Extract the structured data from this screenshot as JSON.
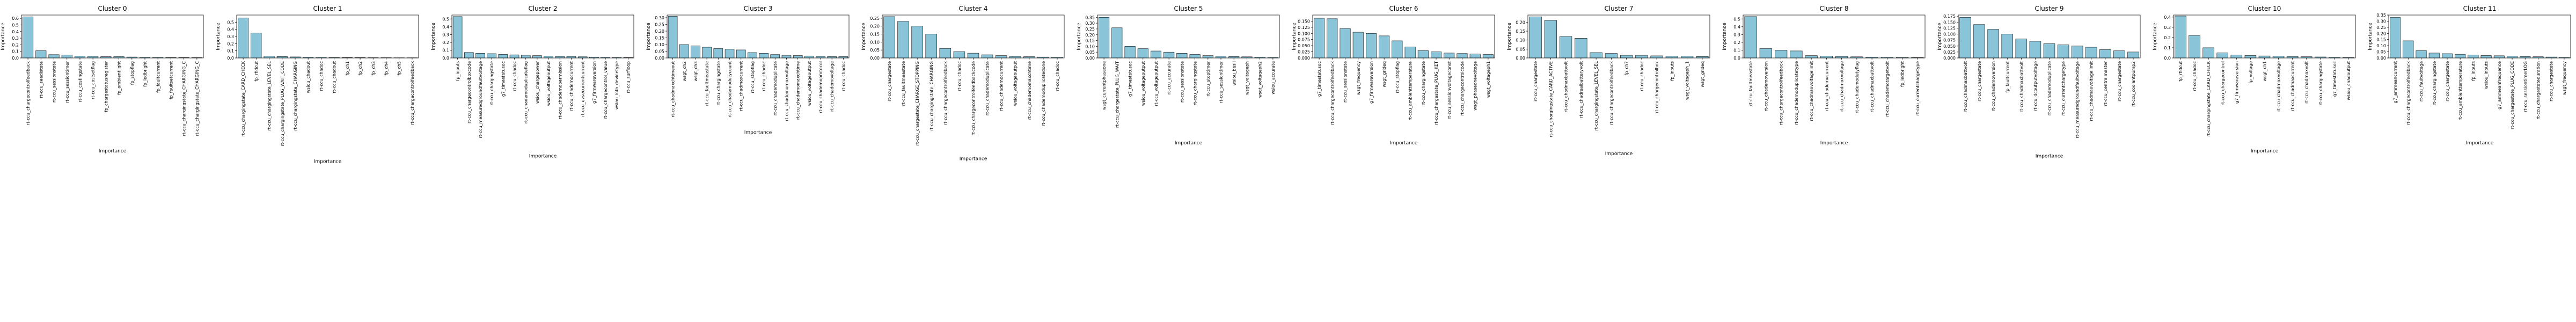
{
  "figure": {
    "bar_color": "#89c4d8",
    "bar_edge_color": "#000000"
  },
  "chart_data": [
    {
      "type": "bar",
      "title": "Cluster 0",
      "xlabel": "Importance",
      "ylabel": "Importance",
      "ylim": [
        0,
        0.65
      ],
      "yticks": [
        0.0,
        0.1,
        0.2,
        0.3,
        0.4,
        0.5,
        0.6
      ],
      "categories": [
        "rt-ccu_chargecontrolfeedback",
        "rt-ccu_seedistate",
        "rt-ccu_sessionstate",
        "rt-ccu_sessiontimer",
        "rt-ccu_costingstate",
        "rt-ccu_costsetflag",
        "fp_chargestatusregister",
        "fp_ambientlight",
        "fp_stopflag",
        "fp_ledbright",
        "fp_faultcurrent",
        "fp_faultsetcurrent",
        "rt-ccu_chargingstate_CHARGING_C",
        "rt-ccu_chargingstate_CHARGING_C"
      ],
      "values": [
        0.62,
        0.11,
        0.05,
        0.045,
        0.03,
        0.025,
        0.02,
        0.02,
        0.015,
        0.012,
        0.01,
        0.008,
        0.006,
        0.005
      ]
    },
    {
      "type": "bar",
      "title": "Cluster 1",
      "xlabel": "Importance",
      "ylabel": "Importance",
      "ylim": [
        0,
        0.6
      ],
      "yticks": [
        0.0,
        0.1,
        0.2,
        0.3,
        0.4,
        0.5
      ],
      "categories": [
        "rt-ccu_chargingstate_CARD_CHECK",
        "fp_rfidcut",
        "rt-ccu_chargingstate_LEVEL_SEL",
        "rt-ccu_chargingstate_PLUG_WAIT_CODE",
        "rt-ccu_chargingstate_CHARGING",
        "wsiou_chadout",
        "rt-ccu_chadoc",
        "rt-ccu_chadout",
        "fp_ch1",
        "fp_ch2",
        "fp_ch3",
        "fp_ch4",
        "fp_ch5",
        "rt-ccu_chargecontrolfeedback"
      ],
      "values": [
        0.56,
        0.35,
        0.025,
        0.02,
        0.015,
        0.012,
        0.01,
        0.008,
        0.006,
        0.005,
        0.004,
        0.004,
        0.003,
        0.003
      ]
    },
    {
      "type": "bar",
      "title": "Cluster 2",
      "xlabel": "Importance",
      "ylabel": "Importance",
      "ylim": [
        0,
        0.55
      ],
      "yticks": [
        0.0,
        0.1,
        0.2,
        0.3,
        0.4,
        0.5
      ],
      "categories": [
        "fp_inputs",
        "rt-ccu_chargecontrolboxcode",
        "rt-ccu_measuredgroundfaultvoltage",
        "rt-ccu_chargingstate",
        "g7_timestatusoc",
        "rt-ccu_chadoc",
        "rt-ccu_chademoduplicateflag",
        "wsiou_chargepower",
        "wsiou_voltageoutput",
        "rt-ccu_chademopermission",
        "rt-ccu_chademocurrent",
        "rt-ccu_evsecurrentcurrent",
        "g7_firmwareversion",
        "rt-ccu_chargecontrol_value",
        "wsiou_info_devicetype",
        "rt-ccu_surfloop"
      ],
      "values": [
        0.53,
        0.07,
        0.06,
        0.055,
        0.045,
        0.04,
        0.035,
        0.03,
        0.025,
        0.02,
        0.02,
        0.015,
        0.012,
        0.01,
        0.008,
        0.006
      ]
    },
    {
      "type": "bar",
      "title": "Cluster 3",
      "xlabel": "Importance",
      "ylabel": "Importance",
      "ylim": [
        0,
        0.32
      ],
      "yticks": [
        0.0,
        0.05,
        0.1,
        0.15,
        0.2,
        0.25,
        0.3
      ],
      "categories": [
        "rt-ccu_chadmaxchtimeout",
        "wsgt_ch2",
        "wsgt_ch3",
        "rt-ccu_faultmeastate",
        "rt-ccu_chargingstate",
        "rt-ccu_chademodutycount",
        "rt-ccu_chadmaxcurrent",
        "rt-ccu_stopflag",
        "rt-ccu_chadoc",
        "rt-ccu_chademoduplicate",
        "rt-ccu_chademomaxvoltage",
        "rt-ccu_chademomaxchtime",
        "wsiou_voltageoutput",
        "rt-ccu_chademoprotocol",
        "rt-ccu_chademovoltage",
        "rt-ccu_chadoc"
      ],
      "values": [
        0.31,
        0.1,
        0.09,
        0.08,
        0.07,
        0.065,
        0.06,
        0.04,
        0.035,
        0.025,
        0.02,
        0.018,
        0.015,
        0.012,
        0.01,
        0.01
      ]
    },
    {
      "type": "bar",
      "title": "Cluster 4",
      "xlabel": "Importance",
      "ylabel": "Importance",
      "ylim": [
        0,
        0.27
      ],
      "yticks": [
        0.0,
        0.05,
        0.1,
        0.15,
        0.2,
        0.25
      ],
      "categories": [
        "rt-ccu_chargestate",
        "rt-ccu_faultmeastate",
        "rt-ccu_chargestate_CHARGE_STOPPING",
        "rt-ccu_chargingstate_CHARGING",
        "rt-ccu_chargecontrolfeedback",
        "rt-ccu_chadoc",
        "rt-ccu_chargecontrolfeedbackcode",
        "rt-ccu_chademoduplicate",
        "rt-ccu_chademocurrent",
        "wsiou_voltageoutput",
        "rt-ccu_chademomaxchtime",
        "rt-ccu_chademoduplicatedone",
        "rt-ccu_chadoc"
      ],
      "values": [
        0.26,
        0.23,
        0.2,
        0.15,
        0.06,
        0.04,
        0.03,
        0.02,
        0.015,
        0.01,
        0.008,
        0.006,
        0.005
      ]
    },
    {
      "type": "bar",
      "title": "Cluster 5",
      "xlabel": "Importance",
      "ylabel": "Importance",
      "ylim": [
        0,
        0.37
      ],
      "yticks": [
        0.0,
        0.05,
        0.1,
        0.15,
        0.2,
        0.25,
        0.3,
        0.35
      ],
      "categories": [
        "wsgt_currentphaseone",
        "rt-ccu_chargestate_PLUG_WAIT",
        "g7_timestatusoc",
        "wsiou_voltageoutput",
        "rt-ccu_voltageoutput",
        "rt-ccu_accurate",
        "rt-ccu_sessionstate",
        "rt-ccu_chargingstate",
        "rt-ccu_stoptimer",
        "rt-ccu_sessiontimer",
        "wsiou_basil",
        "wsgt_voltageph",
        "wsgt_voltageph2",
        "wsiou_accurate"
      ],
      "values": [
        0.35,
        0.26,
        0.1,
        0.08,
        0.06,
        0.05,
        0.04,
        0.03,
        0.02,
        0.015,
        0.012,
        0.01,
        0.008,
        0.006
      ]
    },
    {
      "type": "bar",
      "title": "Cluster 6",
      "xlabel": "Importance",
      "ylabel": "Importance",
      "ylim": [
        0,
        0.175
      ],
      "yticks": [
        0.0,
        0.025,
        0.05,
        0.075,
        0.1,
        0.125,
        0.15
      ],
      "categories": [
        "g7_timestatusoc",
        "rt-ccu_chargecontrolfeedback",
        "rt-ccu_sessionstate",
        "wsgt_frequency",
        "g7_firmwareversion",
        "wsgt_grideq",
        "rt-ccu_stopflag",
        "rt-ccu_ambienttemperature",
        "rt-ccu_chargingstate",
        "rt-ccu_chargestate_PLUG_KET",
        "rt-ccu_sessionvoltageconst",
        "rt-ccu_chargecontrolcode",
        "wsgt_phaseonevoltage",
        "wsgt_voltageph1"
      ],
      "values": [
        0.162,
        0.16,
        0.12,
        0.105,
        0.1,
        0.09,
        0.07,
        0.045,
        0.03,
        0.025,
        0.02,
        0.018,
        0.016,
        0.014
      ]
    },
    {
      "type": "bar",
      "title": "Cluster 7",
      "xlabel": "Importance",
      "ylabel": "Importance",
      "ylim": [
        0,
        0.24
      ],
      "yticks": [
        0.0,
        0.05,
        0.1,
        0.15,
        0.2
      ],
      "categories": [
        "rt-ccu_chargestate",
        "rt-ccu_chargingstate_CARD_ACTIVE",
        "rt-ccu_chadmaxbattvolt",
        "rt-ccu_chadrealbatteryvolt",
        "rt-ccu_chargingstate_LEVEL_SEL",
        "rt-ccu_chargecontrolfeedback",
        "fp_ch7",
        "rt-ccu_chadoc",
        "rt-ccu_chargecontrolbox",
        "fp_inputs",
        "wsgt_voltageph_1",
        "wsgt_grideq"
      ],
      "values": [
        0.23,
        0.21,
        0.12,
        0.11,
        0.03,
        0.025,
        0.015,
        0.015,
        0.012,
        0.01,
        0.01,
        0.008
      ]
    },
    {
      "type": "bar",
      "title": "Cluster 8",
      "xlabel": "Importance",
      "ylabel": "Importance",
      "ylim": [
        0,
        0.55
      ],
      "yticks": [
        0.0,
        0.1,
        0.2,
        0.3,
        0.4,
        0.5
      ],
      "categories": [
        "rt-ccu_faultmeastate",
        "rt-ccu_chademoversion",
        "rt-ccu_chargecontrolfeedback",
        "rt-ccu_chademoduplicatetype",
        "rt-ccu_chadmaxvoltagelimit",
        "rt-ccu_chademocurrent",
        "rt-ccu_chadmaxvoltage",
        "rt-ccu_chademodutyflag",
        "rt-ccu_chadmaxbattvolt",
        "rt-ccu_chademotargetvolt",
        "fp_ledbright",
        "rt-ccu_currentchargetype"
      ],
      "values": [
        0.53,
        0.12,
        0.1,
        0.09,
        0.03,
        0.025,
        0.02,
        0.015,
        0.012,
        0.01,
        0.008,
        0.006
      ]
    },
    {
      "type": "bar",
      "title": "Cluster 9",
      "xlabel": "Importance",
      "ylabel": "Importance",
      "ylim": [
        0,
        0.18
      ],
      "yticks": [
        0.0,
        0.025,
        0.05,
        0.075,
        0.1,
        0.125,
        0.15,
        0.175
      ],
      "categories": [
        "rt-ccu_chadmaxbattvolt",
        "rt-ccu_chargestate",
        "rt-ccu_chademoversion",
        "fp_faultcurrent",
        "rt-ccu_chadmaxbattvolt",
        "rt-ccu_dcoutputvoltage",
        "rt-ccu_chademoduplicate",
        "rt-ccu_currentchargetype",
        "rt-ccu_measuredgroundfaultvoltage",
        "rt-ccu_chadmaxvoltagelimit",
        "rt-ccu_centralmaster",
        "rt-ccu_chargestate",
        "rt-ccu_coolantpump2"
      ],
      "values": [
        0.17,
        0.14,
        0.12,
        0.1,
        0.08,
        0.07,
        0.06,
        0.055,
        0.05,
        0.045,
        0.035,
        0.03,
        0.025
      ]
    },
    {
      "type": "bar",
      "title": "Cluster 10",
      "xlabel": "Importance",
      "ylabel": "Importance",
      "ylim": [
        0,
        0.42
      ],
      "yticks": [
        0.0,
        0.1,
        0.2,
        0.3,
        0.4
      ],
      "categories": [
        "fp_rfidcut",
        "rt-ccu_chadoc",
        "rt-ccu_chargingstate_CARD_CHECK",
        "rt-ccu_chargecontrol",
        "g7_firmwareversion",
        "fp_voltage",
        "wsgt_ch1",
        "rt-ccu_chadmaxvoltage",
        "rt-ccu_chadmaxcurrent",
        "rt-ccu_chadmaxvolt",
        "rt-ccu_chargingstate",
        "g7_timestatusoc",
        "wsiou_chadoutput"
      ],
      "values": [
        0.41,
        0.22,
        0.1,
        0.05,
        0.03,
        0.025,
        0.02,
        0.018,
        0.015,
        0.012,
        0.01,
        0.008,
        0.006
      ]
    },
    {
      "type": "bar",
      "title": "Cluster 11",
      "xlabel": "Importance",
      "ylabel": "Importance",
      "ylim": [
        0,
        0.35
      ],
      "yticks": [
        0.0,
        0.05,
        0.1,
        0.15,
        0.2,
        0.25,
        0.3,
        0.35
      ],
      "categories": [
        "g7_ammeancurrent",
        "rt-ccu_chargecontrolfeedback",
        "rt-ccu_faultvoltage",
        "rt-ccu_chargingstate",
        "rt-ccu_chargestate",
        "rt-ccu_ambienttemperature",
        "fp_inputs",
        "wsiou_inputs",
        "g7_ammeanfrequence",
        "rt-ccu_chargestate_PLUG_CODE",
        "rt-ccu_sessiontimerLOG",
        "rt-ccu_chargestateduration",
        "rt-ccu_chargestate",
        "wsgt_frequency"
      ],
      "values": [
        0.33,
        0.14,
        0.06,
        0.04,
        0.035,
        0.03,
        0.025,
        0.02,
        0.018,
        0.015,
        0.012,
        0.01,
        0.008,
        0.006
      ]
    }
  ]
}
